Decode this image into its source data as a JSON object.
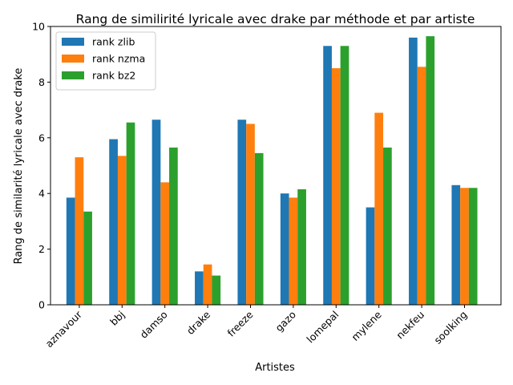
{
  "chart_data": {
    "type": "bar",
    "title": "Rang de similirité lyricale avec drake par méthode et par artiste",
    "xlabel": "Artistes",
    "ylabel": "Rang de similarité lyricale avec drake",
    "categories": [
      "aznavour",
      "bbj",
      "damso",
      "drake",
      "freeze",
      "gazo",
      "lomepal",
      "mylene",
      "nekfeu",
      "soolking"
    ],
    "series": [
      {
        "name": "rank zlib",
        "color": "#1f77b4",
        "values": [
          3.85,
          5.95,
          6.65,
          1.2,
          6.65,
          4.0,
          9.3,
          3.5,
          9.6,
          4.3
        ]
      },
      {
        "name": "rank nzma",
        "color": "#ff7f0e",
        "values": [
          5.3,
          5.35,
          4.4,
          1.45,
          6.5,
          3.85,
          8.5,
          6.9,
          8.55,
          4.2
        ]
      },
      {
        "name": "rank bz2",
        "color": "#2ca02c",
        "values": [
          3.35,
          6.55,
          5.65,
          1.05,
          5.45,
          4.15,
          9.3,
          5.65,
          9.65,
          4.2
        ]
      }
    ],
    "ylim": [
      0,
      10
    ],
    "yticks": [
      0,
      2,
      4,
      6,
      8,
      10
    ],
    "legend": "top-left",
    "grid": false
  }
}
